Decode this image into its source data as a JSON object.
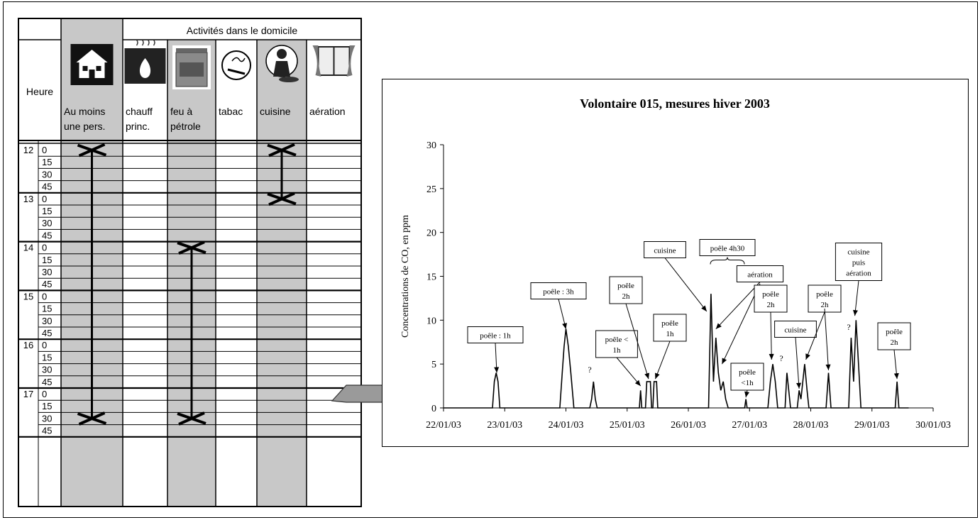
{
  "diary": {
    "header_group": "Activités dans le domicile",
    "hour_label": "Heure",
    "columns": [
      {
        "key": "presence",
        "label1": "Au moins",
        "label2": "une pers.",
        "icon": "house-icon",
        "shaded": true
      },
      {
        "key": "chauff",
        "label1": "chauff",
        "label2": "princ.",
        "icon": "heating-icon",
        "shaded": false
      },
      {
        "key": "feu",
        "label1": "feu à",
        "label2": "pétrole",
        "icon": "kerosene-heater-icon",
        "shaded": true
      },
      {
        "key": "tabac",
        "label1": "tabac",
        "label2": "",
        "icon": "cigarette-icon",
        "shaded": false
      },
      {
        "key": "cuisine",
        "label1": "cuisine",
        "label2": "",
        "icon": "cook-icon",
        "shaded": true
      },
      {
        "key": "aeration",
        "label1": "aération",
        "label2": "",
        "icon": "window-icon",
        "shaded": false
      }
    ],
    "hours": [
      "12",
      "13",
      "14",
      "15",
      "16",
      "17"
    ],
    "minutes": [
      "0",
      "15",
      "30",
      "45"
    ],
    "activity_marks": [
      {
        "column": "presence",
        "from": "12:00",
        "to": "17:30"
      },
      {
        "column": "feu",
        "from": "14:00",
        "to": "17:30"
      },
      {
        "column": "cuisine",
        "from": "12:00",
        "to": "13:00"
      }
    ]
  },
  "arrow": {
    "icon": "right-arrow-icon",
    "color": "#9a9a9a"
  },
  "chart_data": {
    "type": "line",
    "title": "Volontaire 015, mesures hiver 2003",
    "ylabel": "Concentrations de CO, en ppm",
    "xlabel": "",
    "x_ticks": [
      "22/01/03",
      "23/01/03",
      "24/01/03",
      "25/01/03",
      "26/01/03",
      "27/01/03",
      "28/01/03",
      "29/01/03",
      "30/01/03"
    ],
    "y_ticks": [
      "0",
      "5",
      "10",
      "15",
      "20",
      "25",
      "30"
    ],
    "ylim": [
      0,
      30
    ],
    "xlim_days": [
      22,
      30
    ],
    "grid": false,
    "line_color": "#000000",
    "series": [
      {
        "values": [
          [
            22.0,
            0
          ],
          [
            22.8,
            0
          ],
          [
            22.83,
            3
          ],
          [
            22.86,
            4
          ],
          [
            22.89,
            3
          ],
          [
            22.92,
            0
          ],
          [
            23.9,
            0
          ],
          [
            23.94,
            4
          ],
          [
            23.97,
            7
          ],
          [
            24.0,
            9
          ],
          [
            24.04,
            7
          ],
          [
            24.08,
            4
          ],
          [
            24.13,
            0
          ],
          [
            24.39,
            0
          ],
          [
            24.42,
            1
          ],
          [
            24.45,
            3
          ],
          [
            24.48,
            1
          ],
          [
            24.51,
            0
          ],
          [
            25.2,
            0
          ],
          [
            25.22,
            2
          ],
          [
            25.24,
            0
          ],
          [
            25.3,
            0
          ],
          [
            25.32,
            3
          ],
          [
            25.38,
            3
          ],
          [
            25.4,
            0
          ],
          [
            25.42,
            0
          ],
          [
            25.44,
            3
          ],
          [
            25.48,
            3
          ],
          [
            25.5,
            0
          ],
          [
            26.33,
            0
          ],
          [
            26.37,
            13
          ],
          [
            26.41,
            3
          ],
          [
            26.45,
            8
          ],
          [
            26.49,
            4
          ],
          [
            26.53,
            2
          ],
          [
            26.57,
            3
          ],
          [
            26.61,
            1
          ],
          [
            26.65,
            0
          ],
          [
            26.92,
            0
          ],
          [
            26.94,
            1
          ],
          [
            26.96,
            0
          ],
          [
            27.3,
            0
          ],
          [
            27.34,
            3
          ],
          [
            27.38,
            5
          ],
          [
            27.42,
            3
          ],
          [
            27.46,
            0
          ],
          [
            27.58,
            0
          ],
          [
            27.61,
            4
          ],
          [
            27.64,
            2
          ],
          [
            27.67,
            0
          ],
          [
            27.78,
            0
          ],
          [
            27.81,
            2
          ],
          [
            27.84,
            1
          ],
          [
            27.87,
            3
          ],
          [
            27.9,
            5
          ],
          [
            27.94,
            2
          ],
          [
            27.97,
            0
          ],
          [
            28.25,
            0
          ],
          [
            28.29,
            4
          ],
          [
            28.33,
            0
          ],
          [
            28.62,
            0
          ],
          [
            28.66,
            8
          ],
          [
            28.7,
            3
          ],
          [
            28.74,
            10
          ],
          [
            28.78,
            5
          ],
          [
            28.82,
            0
          ],
          [
            29.38,
            0
          ],
          [
            29.41,
            3
          ],
          [
            29.44,
            0
          ],
          [
            29.6,
            0
          ]
        ]
      }
    ],
    "annotations": [
      {
        "lines": [
          "poêle : 1h"
        ],
        "target": [
          22.87,
          4
        ]
      },
      {
        "lines": [
          "poêle : 3h"
        ],
        "target": [
          24.0,
          9
        ]
      },
      {
        "lines": [
          "?"
        ],
        "target": null,
        "at": [
          24.42,
          4.5
        ]
      },
      {
        "lines": [
          "poêle <",
          "1h"
        ],
        "target": [
          25.22,
          2.5
        ]
      },
      {
        "lines": [
          "poêle",
          "2h"
        ],
        "target": [
          25.35,
          3.3
        ]
      },
      {
        "lines": [
          "poêle",
          "1h"
        ],
        "target": [
          25.46,
          3.3
        ]
      },
      {
        "lines": [
          "cuisine"
        ],
        "target": [
          26.3,
          11
        ]
      },
      {
        "lines": [
          "poêle 4h30"
        ],
        "target": null,
        "brace": true
      },
      {
        "lines": [
          "aération"
        ],
        "target": [
          26.45,
          9
        ]
      },
      {
        "lines": [
          "aération"
        ],
        "target": [
          26.55,
          5
        ]
      },
      {
        "lines": [
          "poêle",
          "<1h"
        ],
        "target": [
          26.94,
          1.2
        ]
      },
      {
        "lines": [
          "poêle",
          "2h"
        ],
        "target": [
          27.36,
          5.5
        ]
      },
      {
        "lines": [
          "?"
        ],
        "target": null,
        "at": [
          27.6,
          5.8
        ]
      },
      {
        "lines": [
          "cuisine"
        ],
        "target": [
          27.81,
          2.2
        ]
      },
      {
        "lines": [
          "poêle",
          "2h"
        ],
        "target": [
          27.92,
          5.5
        ]
      },
      {
        "lines": [
          "poêle",
          "2h"
        ],
        "target": [
          28.29,
          4.3
        ]
      },
      {
        "lines": [
          "?"
        ],
        "target": null,
        "at": [
          28.62,
          9.2
        ]
      },
      {
        "lines": [
          "cuisine",
          "puis",
          "aération"
        ],
        "target": [
          28.72,
          10.5
        ]
      },
      {
        "lines": [
          "poêle",
          "2h"
        ],
        "target": [
          29.41,
          3.3
        ]
      }
    ]
  }
}
